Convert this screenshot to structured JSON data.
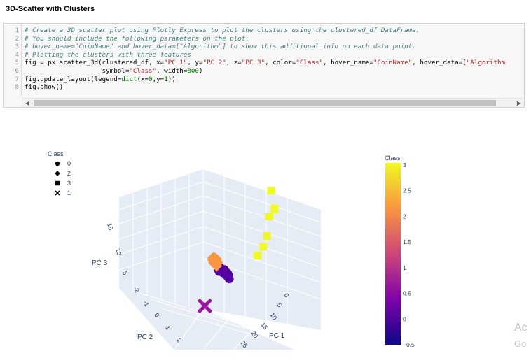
{
  "section_title": "3D-Scatter with Clusters",
  "code_lines": [
    {
      "n": "1",
      "html": "<span class=\"cm\"># Create a 3D scatter plot using Plotly Express to plot the clusters using the clustered_df DataFrame.</span>"
    },
    {
      "n": "2",
      "html": "<span class=\"cm\"># You should include the following parameters on the plot:</span>"
    },
    {
      "n": "3",
      "html": "<span class=\"cm\"># hover_name=\"CoinName\" and hover_data=[\"Algorithm\"] to show this additional info on each data point.</span>"
    },
    {
      "n": "4",
      "html": "<span class=\"cm\"># Plotting the clusters with three features</span>"
    },
    {
      "n": "5",
      "html": "fig = px.scatter_3d(clustered_df, x=<span class=\"st\">\"PC 1\"</span>, y=<span class=\"st\">\"PC 2\"</span>, z=<span class=\"st\">\"PC 3\"</span>, color=<span class=\"st\">\"Class\"</span>, hover_name=<span class=\"st\">\"CoinName\"</span>, hover_data=[<span class=\"st\">\"Algorithm</span>"
    },
    {
      "n": "6",
      "html": "                    symbol=<span class=\"st\">\"Class\"</span>, width=<span class=\"nm\">800</span>)"
    },
    {
      "n": "7",
      "html": "fig.update_layout(legend=<span class=\"kw\">dict</span>(x=<span class=\"nm\">0</span>,y=<span class=\"nm\">1</span>))"
    },
    {
      "n": "8",
      "html": "fig.show()"
    }
  ],
  "chart_data": {
    "type": "scatter",
    "projection": "3d",
    "legend": {
      "title": "Class",
      "placement": "top-left",
      "entries": [
        {
          "label": "0",
          "symbol": "circle"
        },
        {
          "label": "2",
          "symbol": "diamond"
        },
        {
          "label": "3",
          "symbol": "square"
        },
        {
          "label": "1",
          "symbol": "x"
        }
      ]
    },
    "colorbar": {
      "title": "Class",
      "range": [
        -0.5,
        3
      ],
      "ticks": [
        "3",
        "2.5",
        "2",
        "1.5",
        "1",
        "0.5",
        "0",
        "−0.5"
      ],
      "colors": [
        "#0d0887",
        "#7e03a8",
        "#cc4778",
        "#f89540",
        "#f0f921"
      ]
    },
    "axes": {
      "x": {
        "label": "PC 1",
        "ticks": [
          "0",
          "5",
          "10",
          "15",
          "20",
          "25"
        ]
      },
      "y": {
        "label": "PC 2",
        "ticks": "-2 -1 0 1 2"
      },
      "z": {
        "label": "PC 3",
        "ticks": [
          "5",
          "10",
          "15"
        ]
      }
    },
    "series": [
      {
        "name": "0",
        "symbol": "circle",
        "color": "#5302a3",
        "points": [
          [
            -0.5,
            -0.3,
            -0.8
          ],
          [
            -0.3,
            -0.2,
            -0.6
          ],
          [
            -0.1,
            -0.2,
            -0.7
          ],
          [
            0.1,
            -0.3,
            -0.5
          ],
          [
            0.3,
            -0.2,
            -0.8
          ],
          [
            0.5,
            -0.1,
            -0.6
          ],
          [
            0.8,
            -0.2,
            -0.4
          ],
          [
            1.0,
            -0.1,
            -0.7
          ],
          [
            1.3,
            -0.2,
            -0.5
          ],
          [
            1.5,
            -0.1,
            -0.3
          ],
          [
            1.8,
            0.0,
            -0.6
          ],
          [
            2.1,
            -0.1,
            -0.2
          ],
          [
            2.4,
            0.0,
            -0.4
          ],
          [
            2.7,
            -0.1,
            -0.5
          ],
          [
            3.0,
            0.0,
            -0.3
          ],
          [
            3.3,
            0.1,
            -0.6
          ],
          [
            3.6,
            0.0,
            -0.4
          ],
          [
            3.9,
            0.1,
            -0.7
          ],
          [
            4.2,
            0.1,
            -0.5
          ],
          [
            4.6,
            0.2,
            -0.8
          ],
          [
            0.0,
            0.1,
            -0.2
          ],
          [
            0.6,
            0.2,
            -0.3
          ],
          [
            1.2,
            0.1,
            -0.1
          ],
          [
            2.0,
            0.2,
            -0.2
          ]
        ]
      },
      {
        "name": "2",
        "symbol": "diamond",
        "color": "#f89540",
        "points": [
          [
            -2.5,
            -0.1,
            0.9
          ],
          [
            -2.2,
            -0.2,
            0.7
          ],
          [
            -1.9,
            0.0,
            1.2
          ],
          [
            -1.6,
            -0.1,
            0.8
          ],
          [
            -1.3,
            0.0,
            0.5
          ],
          [
            -1.0,
            -0.1,
            1.0
          ],
          [
            -0.8,
            0.0,
            0.3
          ],
          [
            -0.5,
            -0.1,
            0.6
          ],
          [
            -2.0,
            -0.3,
            0.2
          ],
          [
            -1.5,
            -0.2,
            0.1
          ],
          [
            -1.2,
            0.1,
            1.4
          ],
          [
            -0.9,
            0.1,
            0.9
          ],
          [
            -2.7,
            -0.2,
            0.4
          ],
          [
            -0.6,
            0.1,
            0.2
          ],
          [
            -1.8,
            0.1,
            0.5
          ]
        ]
      },
      {
        "name": "3",
        "symbol": "square",
        "color": "#f0f921",
        "points": [
          [
            22.0,
            0.5,
            17.0
          ],
          [
            23.5,
            0.6,
            14.5
          ],
          [
            21.0,
            0.4,
            12.5
          ],
          [
            20.0,
            0.3,
            9.0
          ],
          [
            18.5,
            0.3,
            7.0
          ],
          [
            16.0,
            0.2,
            5.0
          ]
        ]
      },
      {
        "name": "1",
        "symbol": "x",
        "color": "#9c179e",
        "points": [
          [
            -1.8,
            2.2,
            -3.5
          ]
        ]
      }
    ]
  }
}
